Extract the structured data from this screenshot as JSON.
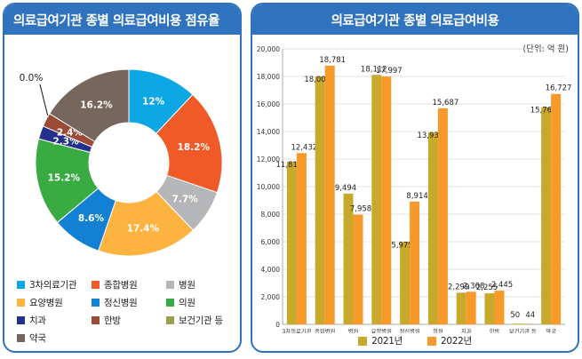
{
  "chart_data": [
    {
      "type": "pie",
      "title": "의료급여기관 종별 의료급여비용 점유율",
      "categories": [
        "3차의료기관",
        "종합병원",
        "병원",
        "요양병원",
        "정신병원",
        "의원",
        "치과",
        "한방",
        "보건기관 등",
        "약국"
      ],
      "values": [
        12,
        18.2,
        7.7,
        17.4,
        8.6,
        15.2,
        2.3,
        2.4,
        0.0,
        16.2
      ],
      "labels": [
        "12%",
        "18.2%",
        "7.7%",
        "17.4%",
        "8.6%",
        "15.2%",
        "2.3%",
        "2.4%",
        "0.0%",
        "16.2%"
      ],
      "colors": [
        "#0ea7e6",
        "#ef5a28",
        "#b5b6b8",
        "#fdb340",
        "#1280d3",
        "#3aab43",
        "#23318c",
        "#9a4a35",
        "#9c9d4e",
        "#77665c"
      ]
    },
    {
      "type": "bar",
      "title": "의료급여기관 종별 의료급여비용",
      "unit": "(단위: 억 원)",
      "categories": [
        "3차의료기관",
        "종합병원",
        "병원",
        "요양병원",
        "정신병원",
        "의원",
        "치과",
        "한방",
        "보건기관 등",
        "약국"
      ],
      "series": [
        {
          "name": "2021년",
          "color": "#c9a92b",
          "values": [
            11814,
            18004,
            9494,
            18112,
            5975,
            13930,
            2299,
            2255,
            50,
            15762
          ],
          "labels": [
            "11,814",
            "18,004",
            "9,494",
            "18,112",
            "5,975",
            "13,930",
            "2,299",
            "2,255",
            "50",
            "15,762"
          ]
        },
        {
          "name": "2022년",
          "color": "#f89a2b",
          "values": [
            12432,
            18781,
            7958,
            17997,
            8914,
            15687,
            2368,
            2445,
            44,
            16727
          ],
          "labels": [
            "12,432",
            "18,781",
            "7,958",
            "17,997",
            "8,914",
            "15,687",
            "2,368",
            "2,445",
            "44",
            "16,727"
          ]
        }
      ],
      "ylim": [
        0,
        20000
      ],
      "yticks": [
        "0",
        "2,000",
        "4,000",
        "6,000",
        "8,000",
        "10,000",
        "12,000",
        "14,000",
        "16,000",
        "18,000",
        "20,000"
      ]
    }
  ]
}
